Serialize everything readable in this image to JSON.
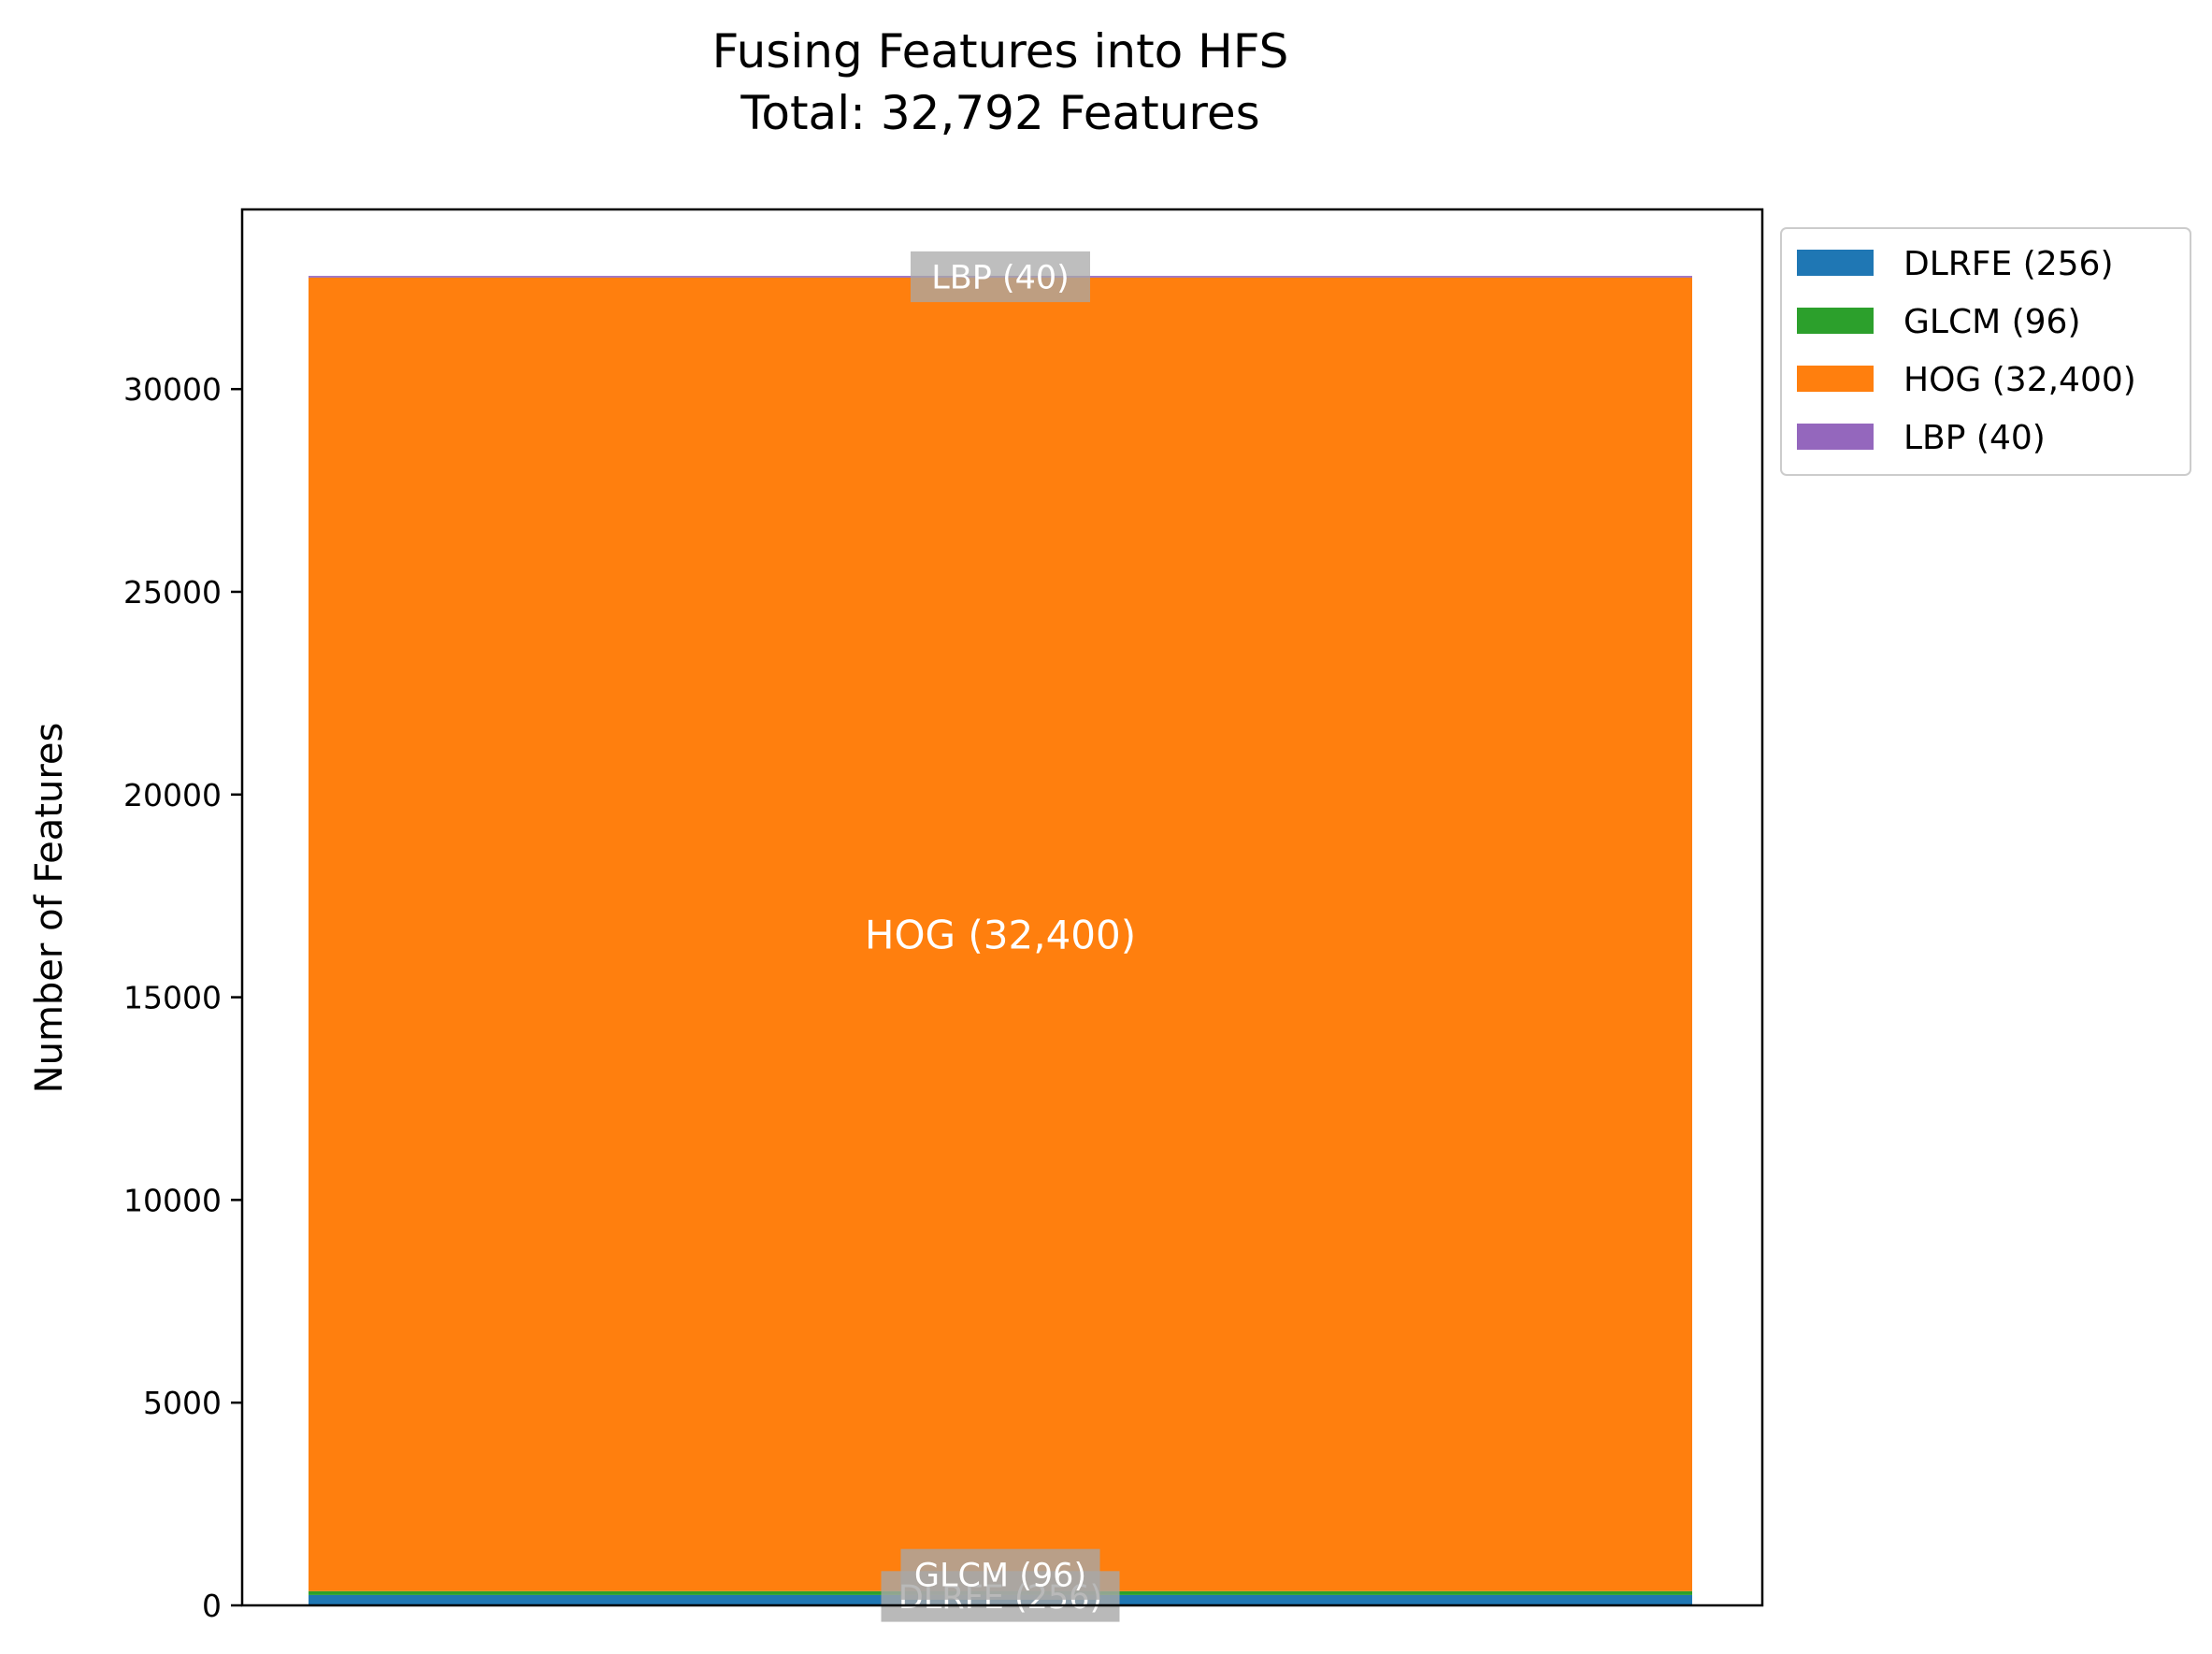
{
  "chart_data": {
    "type": "bar",
    "stacked": true,
    "title": "Fusing Features into HFS",
    "subtitle": "Total: 32,792 Features",
    "xlabel": "",
    "ylabel": "Number of Features",
    "ylim": [
      0,
      34432
    ],
    "yticks": [
      "0",
      "5000",
      "10000",
      "15000",
      "20000",
      "25000",
      "30000"
    ],
    "ytick_values": [
      0,
      5000,
      10000,
      15000,
      20000,
      25000,
      30000
    ],
    "categories": [
      ""
    ],
    "legend_position": "upper-right-outside",
    "grid": false,
    "series": [
      {
        "name": "DLRFE (256)",
        "values": [
          256
        ],
        "color": "#1f77b4",
        "bar_label": "DLRFE (256)"
      },
      {
        "name": "GLCM (96)",
        "values": [
          96
        ],
        "color": "#2ca02c",
        "bar_label": "GLCM (96)"
      },
      {
        "name": "HOG (32,400)",
        "values": [
          32400
        ],
        "color": "#ff7f0e",
        "bar_label": "HOG (32,400)"
      },
      {
        "name": "LBP (40)",
        "values": [
          40
        ],
        "color": "#9467bd",
        "bar_label": "LBP (40)"
      }
    ]
  }
}
